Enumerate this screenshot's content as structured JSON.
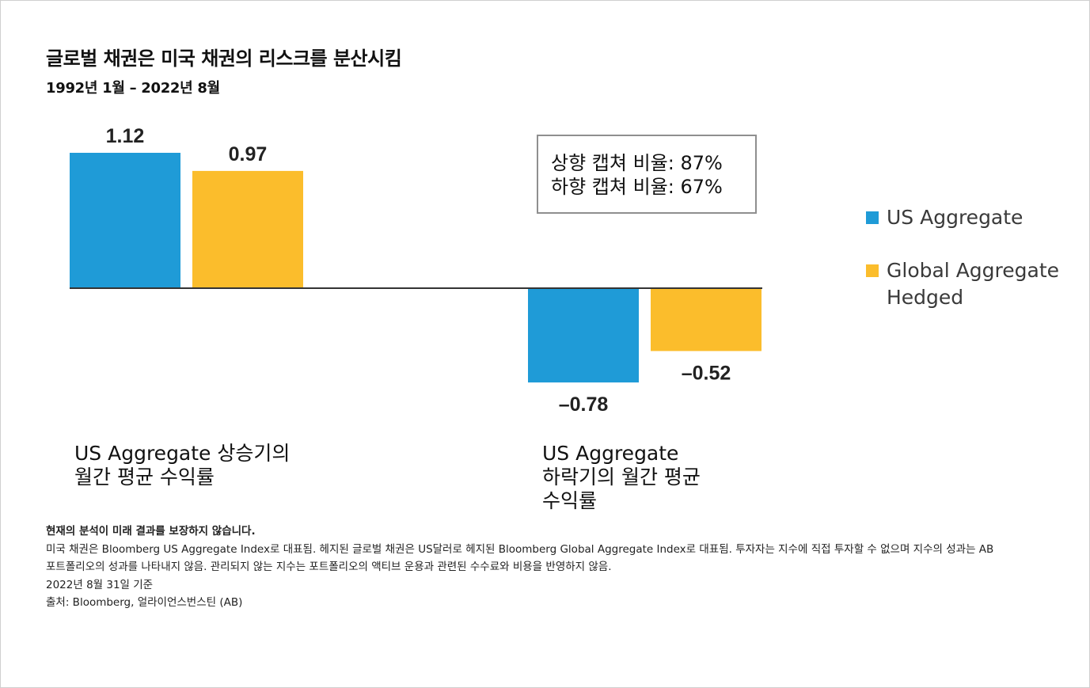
{
  "title": "글로벌 채권은 미국 채권의 리스크를 분산시킴",
  "subtitle": "1992년 1월 – 2022년 8월",
  "colors": {
    "us_aggregate": "#1f9bd7",
    "global_aggregate_hedged": "#fbbd2c",
    "axis": "#333333",
    "box_border": "#8f8f8f"
  },
  "capture_box": {
    "upside": "상향 캡쳐 비율: 87%",
    "downside": "하향 캡쳐 비율: 67%"
  },
  "group_labels": {
    "up": [
      "US Aggregate 상승기의",
      "월간 평균 수익률"
    ],
    "down": [
      "US Aggregate",
      "하락기의 월간 평균",
      "수익률"
    ]
  },
  "footnotes": {
    "note1": "현재의 분석이 미래 결과를 보장하지 않습니다.",
    "note2": "미국 채권은 Bloomberg US Aggregate Index로 대표됨. 헤지된 글로벌 채권은 US달러로 헤지된 Bloomberg Global Aggregate Index로 대표됨. 투자자는 지수에 직접 투자할 수 없으며 지수의 성과는 AB",
    "note3": "포트폴리오의 성과를 나타내지 않음. 관리되지 않는 지수는 포트폴리오의 액티브 운용과 관련된 수수료와 비용을 반영하지 않음.",
    "date": "2022년 8월 31일 기준",
    "source": "출처: Bloomberg, 얼라이언스번스틴 (AB)"
  },
  "chart_data": {
    "type": "bar",
    "categories": [
      "US Aggregate 상승기의 월간 평균 수익률",
      "US Aggregate 하락기의 월간 평균 수익률"
    ],
    "series": [
      {
        "name": "US Aggregate",
        "values": [
          1.12,
          -0.78
        ],
        "labels": [
          "1.12",
          "–0.78"
        ]
      },
      {
        "name": "Global Aggregate Hedged",
        "legend_lines": [
          "Global Aggregate",
          "Hedged"
        ],
        "values": [
          0.97,
          -0.52
        ],
        "labels": [
          "0.97",
          "–0.52"
        ]
      }
    ],
    "ylim": [
      -0.78,
      1.12
    ],
    "grid": false,
    "legend_position": "right",
    "xlabel": "",
    "ylabel": ""
  }
}
